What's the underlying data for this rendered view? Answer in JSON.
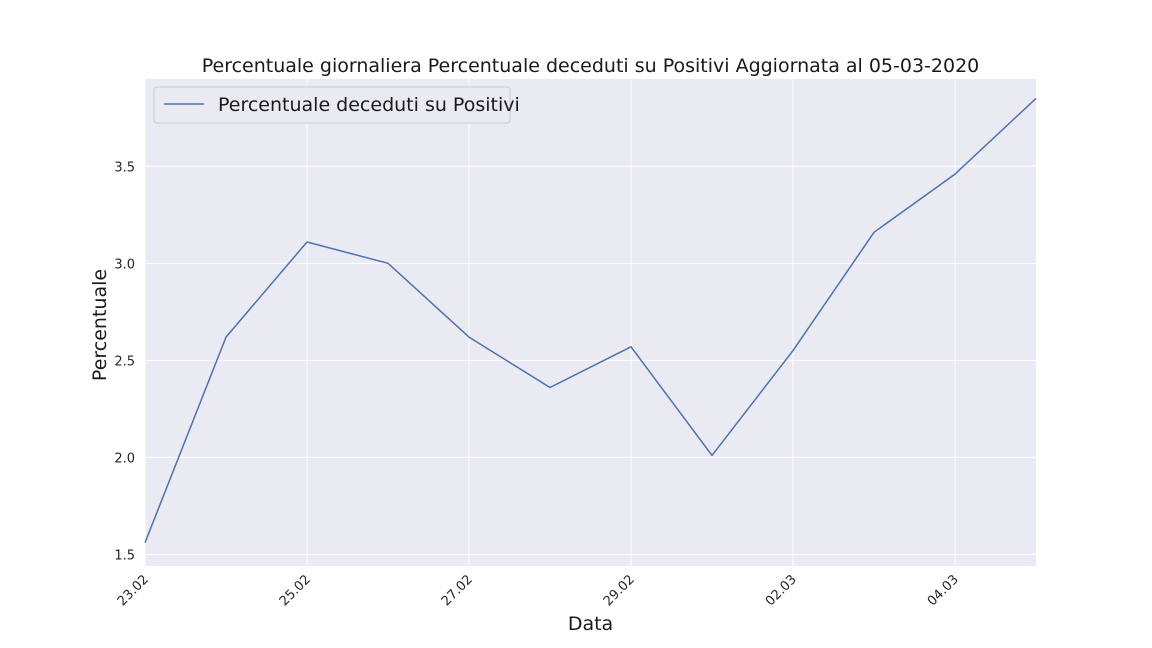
{
  "chart_data": {
    "type": "line",
    "title": "Percentuale giornaliera Percentuale deceduti su Positivi Aggiornata al 05-03-2020",
    "xlabel": "Data",
    "ylabel": "Percentuale",
    "x": [
      "23.02",
      "24.02",
      "25.02",
      "26.02",
      "27.02",
      "28.02",
      "29.02",
      "01.03",
      "02.03",
      "03.03",
      "04.03",
      "05.03"
    ],
    "x_tick_labels": [
      "23.02",
      "25.02",
      "27.02",
      "29.02",
      "02.03",
      "04.03"
    ],
    "y_ticks": [
      "1.5",
      "2.0",
      "2.5",
      "3.0",
      "3.5"
    ],
    "ylim": [
      1.44,
      3.95
    ],
    "grid": true,
    "legend_position": "top-left",
    "series": [
      {
        "name": "Percentuale deceduti su Positivi",
        "color": "#4c72b0",
        "values": [
          1.56,
          2.62,
          3.11,
          3.0,
          2.62,
          2.36,
          2.57,
          2.01,
          2.55,
          3.16,
          3.46,
          3.85
        ]
      }
    ]
  },
  "colors": {
    "plot_background": "#eaeaf2",
    "grid": "#ffffff",
    "line": "#4c72b0"
  }
}
